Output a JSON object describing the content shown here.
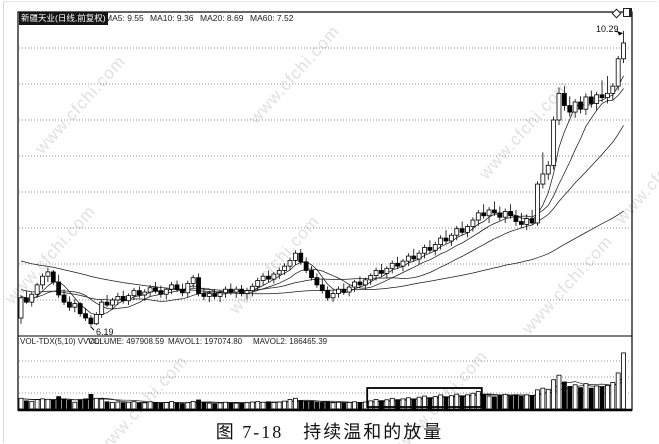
{
  "header": {
    "title": "新疆天业(日线,前复权)",
    "ma5": "MA5: 9.55",
    "ma10": "MA10: 9.36",
    "ma20": "MA20: 8.69",
    "ma60": "MA60: 7.52"
  },
  "volume_header": {
    "indicator": "VOL-TDX(5,10) VVOL: -",
    "volume": "VOLUME: 497908.59",
    "mavol1": "MAVOL1: 197074.80",
    "mavol2": "MAVOL2: 186465.39"
  },
  "labels": {
    "high": "10.29",
    "low": "6.19"
  },
  "caption": "图 7-18　持续温和的放量",
  "watermark": "www.cfchi.com",
  "colors": {
    "candle_up": "#ffffff",
    "candle_down": "#000000",
    "line": "#1c1c1c",
    "grid": "#6e6e6e",
    "frame": "#000000",
    "watermark": "#cccccc",
    "badge_bg": "#141414",
    "badge_text": "#ffffff"
  },
  "chart_data": {
    "type": "candlestick",
    "title": "新疆天业(日线,前复权)",
    "legend": [
      "MA5",
      "MA10",
      "MA20",
      "MA60"
    ],
    "ylim": [
      6.05,
      10.55
    ],
    "gridlines_h": 8,
    "grid": true,
    "vol_max": 515000,
    "ma_periods": [
      5,
      10,
      20,
      60
    ],
    "mavol_periods": [
      5,
      10
    ],
    "vol_seed": 90000,
    "high_label": {
      "value": 10.29,
      "bar": 112
    },
    "low_label": {
      "value": 6.19,
      "bar": 13
    },
    "highlight_box": {
      "from_bar": 65,
      "to_bar": 85
    },
    "ma_seed": [
      7.7,
      7.68,
      7.66,
      7.64,
      7.62,
      7.6,
      7.58,
      7.56,
      7.54,
      7.52,
      7.5,
      7.48,
      7.46,
      7.44,
      7.42,
      7.4,
      7.38,
      7.36,
      7.34,
      7.32,
      7.3,
      7.28,
      7.26,
      7.24,
      7.22,
      7.2,
      7.18,
      7.16,
      7.14,
      7.12,
      7.1,
      7.08,
      7.06,
      7.04,
      7.02,
      7.0,
      6.98,
      6.96,
      6.94,
      6.92,
      6.9,
      6.88,
      6.86,
      6.84,
      6.82,
      6.8,
      6.78,
      6.76,
      6.74,
      6.72,
      6.7,
      6.68,
      6.66,
      6.64,
      6.62,
      6.6,
      6.58,
      6.56,
      6.54,
      6.52
    ],
    "ohlc": [
      [
        6.3,
        6.62,
        6.22,
        6.58
      ],
      [
        6.58,
        6.68,
        6.5,
        6.52
      ],
      [
        6.52,
        6.66,
        6.46,
        6.63
      ],
      [
        6.63,
        6.79,
        6.58,
        6.76
      ],
      [
        6.76,
        6.92,
        6.7,
        6.88
      ],
      [
        6.88,
        7.0,
        6.8,
        6.94
      ],
      [
        6.94,
        6.97,
        6.76,
        6.8
      ],
      [
        6.8,
        6.9,
        6.58,
        6.62
      ],
      [
        6.62,
        6.7,
        6.48,
        6.52
      ],
      [
        6.52,
        6.6,
        6.4,
        6.45
      ],
      [
        6.45,
        6.56,
        6.38,
        6.5
      ],
      [
        6.5,
        6.52,
        6.32,
        6.36
      ],
      [
        6.36,
        6.44,
        6.26,
        6.3
      ],
      [
        6.3,
        6.34,
        6.19,
        6.22
      ],
      [
        6.22,
        6.38,
        6.2,
        6.35
      ],
      [
        6.35,
        6.55,
        6.3,
        6.52
      ],
      [
        6.52,
        6.62,
        6.45,
        6.48
      ],
      [
        6.48,
        6.58,
        6.42,
        6.55
      ],
      [
        6.55,
        6.65,
        6.48,
        6.6
      ],
      [
        6.6,
        6.68,
        6.5,
        6.54
      ],
      [
        6.54,
        6.64,
        6.48,
        6.61
      ],
      [
        6.61,
        6.72,
        6.55,
        6.68
      ],
      [
        6.68,
        6.74,
        6.58,
        6.62
      ],
      [
        6.62,
        6.7,
        6.54,
        6.66
      ],
      [
        6.66,
        6.76,
        6.6,
        6.72
      ],
      [
        6.72,
        6.8,
        6.64,
        6.68
      ],
      [
        6.68,
        6.75,
        6.58,
        6.63
      ],
      [
        6.63,
        6.72,
        6.56,
        6.7
      ],
      [
        6.7,
        6.8,
        6.63,
        6.76
      ],
      [
        6.76,
        6.82,
        6.66,
        6.7
      ],
      [
        6.7,
        6.78,
        6.6,
        6.65
      ],
      [
        6.65,
        6.82,
        6.58,
        6.78
      ],
      [
        6.78,
        6.9,
        6.72,
        6.86
      ],
      [
        6.86,
        6.92,
        6.6,
        6.64
      ],
      [
        6.64,
        6.72,
        6.55,
        6.6
      ],
      [
        6.6,
        6.68,
        6.52,
        6.64
      ],
      [
        6.64,
        6.7,
        6.56,
        6.6
      ],
      [
        6.6,
        6.68,
        6.52,
        6.65
      ],
      [
        6.65,
        6.74,
        6.58,
        6.7
      ],
      [
        6.7,
        6.78,
        6.62,
        6.66
      ],
      [
        6.66,
        6.74,
        6.58,
        6.7
      ],
      [
        6.7,
        6.76,
        6.6,
        6.64
      ],
      [
        6.64,
        6.72,
        6.56,
        6.68
      ],
      [
        6.68,
        6.78,
        6.6,
        6.74
      ],
      [
        6.74,
        6.86,
        6.68,
        6.82
      ],
      [
        6.82,
        6.92,
        6.76,
        6.88
      ],
      [
        6.88,
        6.96,
        6.8,
        6.84
      ],
      [
        6.84,
        6.94,
        6.78,
        6.91
      ],
      [
        6.91,
        7.0,
        6.84,
        6.96
      ],
      [
        6.96,
        7.06,
        6.9,
        7.02
      ],
      [
        7.02,
        7.14,
        6.96,
        7.1
      ],
      [
        7.1,
        7.24,
        7.04,
        7.2
      ],
      [
        7.2,
        7.26,
        7.04,
        7.08
      ],
      [
        7.08,
        7.14,
        6.92,
        6.96
      ],
      [
        6.96,
        7.02,
        6.82,
        6.86
      ],
      [
        6.86,
        6.92,
        6.72,
        6.76
      ],
      [
        6.76,
        6.84,
        6.64,
        6.68
      ],
      [
        6.68,
        6.74,
        6.54,
        6.58
      ],
      [
        6.58,
        6.68,
        6.52,
        6.64
      ],
      [
        6.64,
        6.74,
        6.58,
        6.7
      ],
      [
        6.7,
        6.78,
        6.62,
        6.66
      ],
      [
        6.66,
        6.76,
        6.6,
        6.73
      ],
      [
        6.73,
        6.83,
        6.66,
        6.8
      ],
      [
        6.8,
        6.88,
        6.72,
        6.76
      ],
      [
        6.76,
        6.86,
        6.7,
        6.83
      ],
      [
        6.83,
        6.92,
        6.76,
        6.89
      ],
      [
        6.89,
        7.0,
        6.82,
        6.96
      ],
      [
        6.96,
        7.05,
        6.88,
        6.92
      ],
      [
        6.92,
        7.02,
        6.85,
        6.99
      ],
      [
        6.99,
        7.1,
        6.92,
        7.06
      ],
      [
        7.06,
        7.15,
        6.98,
        7.02
      ],
      [
        7.02,
        7.12,
        6.95,
        7.09
      ],
      [
        7.09,
        7.2,
        7.02,
        7.16
      ],
      [
        7.16,
        7.26,
        7.08,
        7.12
      ],
      [
        7.12,
        7.24,
        7.05,
        7.2
      ],
      [
        7.2,
        7.32,
        7.13,
        7.28
      ],
      [
        7.28,
        7.38,
        7.2,
        7.24
      ],
      [
        7.24,
        7.36,
        7.17,
        7.32
      ],
      [
        7.32,
        7.45,
        7.25,
        7.41
      ],
      [
        7.41,
        7.52,
        7.33,
        7.37
      ],
      [
        7.37,
        7.48,
        7.3,
        7.45
      ],
      [
        7.45,
        7.58,
        7.38,
        7.54
      ],
      [
        7.54,
        7.64,
        7.45,
        7.49
      ],
      [
        7.49,
        7.6,
        7.42,
        7.57
      ],
      [
        7.57,
        7.7,
        7.5,
        7.66
      ],
      [
        7.66,
        7.8,
        7.58,
        7.76
      ],
      [
        7.76,
        7.88,
        7.68,
        7.72
      ],
      [
        7.72,
        7.84,
        7.62,
        7.8
      ],
      [
        7.8,
        7.92,
        7.72,
        7.76
      ],
      [
        7.76,
        7.85,
        7.65,
        7.7
      ],
      [
        7.7,
        7.82,
        7.62,
        7.78
      ],
      [
        7.78,
        7.88,
        7.68,
        7.72
      ],
      [
        7.72,
        7.8,
        7.58,
        7.64
      ],
      [
        7.64,
        7.76,
        7.55,
        7.6
      ],
      [
        7.6,
        7.74,
        7.52,
        7.68
      ],
      [
        7.68,
        7.8,
        7.6,
        7.62
      ],
      [
        7.62,
        8.2,
        7.58,
        8.16
      ],
      [
        8.16,
        8.6,
        8.1,
        8.3
      ],
      [
        8.3,
        8.48,
        8.22,
        8.42
      ],
      [
        8.42,
        9.1,
        8.36,
        9.05
      ],
      [
        9.05,
        9.5,
        8.98,
        9.42
      ],
      [
        9.42,
        9.52,
        9.18,
        9.25
      ],
      [
        9.25,
        9.38,
        9.1,
        9.16
      ],
      [
        9.16,
        9.34,
        9.08,
        9.3
      ],
      [
        9.3,
        9.38,
        9.14,
        9.2
      ],
      [
        9.2,
        9.42,
        9.12,
        9.37
      ],
      [
        9.37,
        9.46,
        9.22,
        9.28
      ],
      [
        9.28,
        9.44,
        9.18,
        9.4
      ],
      [
        9.4,
        9.6,
        9.3,
        9.36
      ],
      [
        9.36,
        9.66,
        9.28,
        9.42
      ],
      [
        9.42,
        9.56,
        9.32,
        9.52
      ],
      [
        9.52,
        9.94,
        9.46,
        9.9
      ],
      [
        9.9,
        10.29,
        9.84,
        10.12
      ]
    ],
    "volume": [
      95000,
      72000,
      68000,
      84000,
      90000,
      86000,
      78000,
      110000,
      88000,
      76000,
      60000,
      82000,
      90000,
      130000,
      95000,
      88000,
      64000,
      58000,
      62000,
      56000,
      60000,
      65000,
      52000,
      55000,
      64000,
      58000,
      50000,
      57000,
      66000,
      54000,
      48000,
      56000,
      68000,
      80000,
      58000,
      52000,
      48000,
      54000,
      60000,
      55000,
      52000,
      50000,
      56000,
      62000,
      66000,
      60000,
      64000,
      58000,
      62000,
      70000,
      85000,
      95000,
      72000,
      68000,
      64000,
      60000,
      58000,
      62000,
      56000,
      60000,
      54000,
      58000,
      64000,
      56000,
      62000,
      72000,
      85000,
      74000,
      82000,
      95000,
      80000,
      90000,
      100000,
      88000,
      105000,
      115000,
      96000,
      110000,
      125000,
      104000,
      118000,
      132000,
      112000,
      126000,
      140000,
      155000,
      128000,
      115000,
      108000,
      122000,
      130000,
      118000,
      125000,
      112000,
      126000,
      118000,
      170000,
      185000,
      175000,
      260000,
      300000,
      240000,
      200000,
      215000,
      190000,
      225000,
      185000,
      205000,
      195000,
      210000,
      235000,
      320000,
      497908
    ]
  }
}
